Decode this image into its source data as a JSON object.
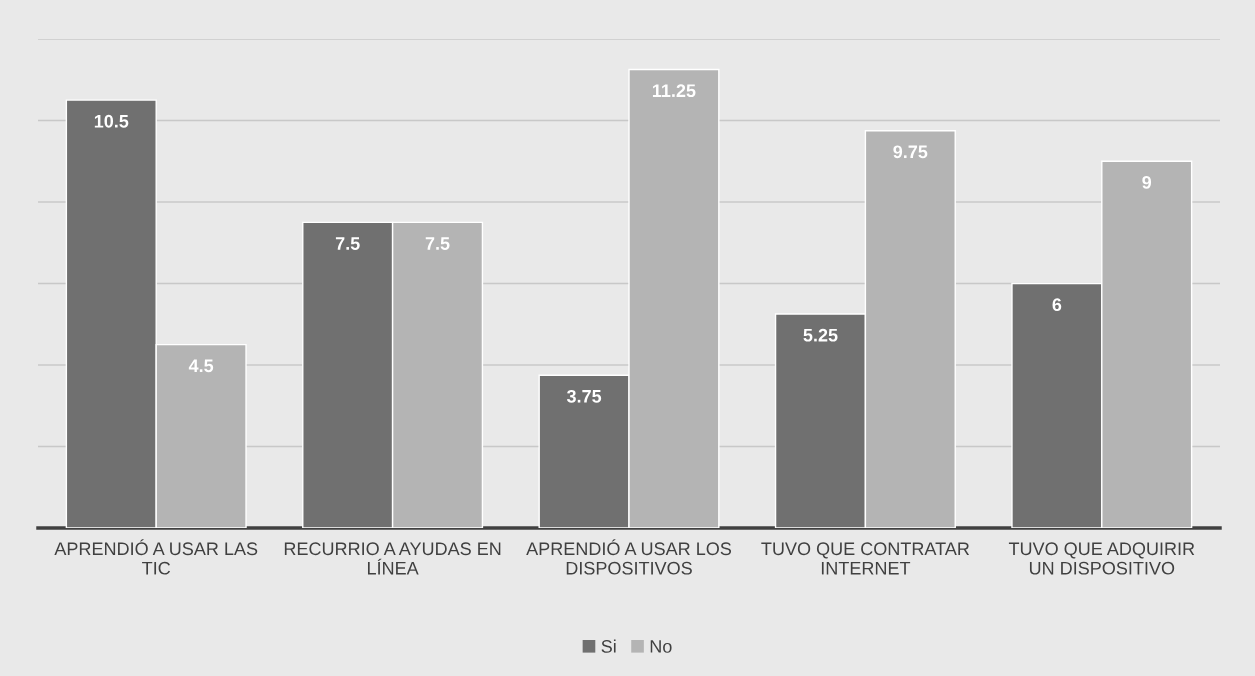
{
  "chart_data": {
    "type": "bar",
    "categories": [
      "APRENDIÓ A USAR LAS\nTIC",
      "RECURRIO A AYUDAS EN\nLÍNEA",
      "APRENDIÓ A USAR LOS\nDISPOSITIVOS",
      "TUVO QUE CONTRATAR\nINTERNET",
      "TUVO QUE ADQUIRIR\nUN DISPOSITIVO"
    ],
    "series": [
      {
        "name": "Si",
        "color": "#707070",
        "values": [
          10.5,
          7.5,
          3.75,
          5.25,
          6
        ]
      },
      {
        "name": "No",
        "color": "#b4b4b4",
        "values": [
          4.5,
          7.5,
          11.25,
          9.75,
          9
        ]
      }
    ],
    "ylim": [
      0,
      12
    ],
    "yticks": [
      {
        "value": 0,
        "label": null
      },
      {
        "value": 2,
        "label": null
      },
      {
        "value": 4,
        "label": null
      },
      {
        "value": 6,
        "label": null
      },
      {
        "value": 8,
        "label": null
      },
      {
        "value": 10,
        "label": null
      },
      {
        "value": 12,
        "label": null
      }
    ],
    "tick_labels": "x",
    "grid": "y",
    "legend": "bottom",
    "data_labels": true
  }
}
